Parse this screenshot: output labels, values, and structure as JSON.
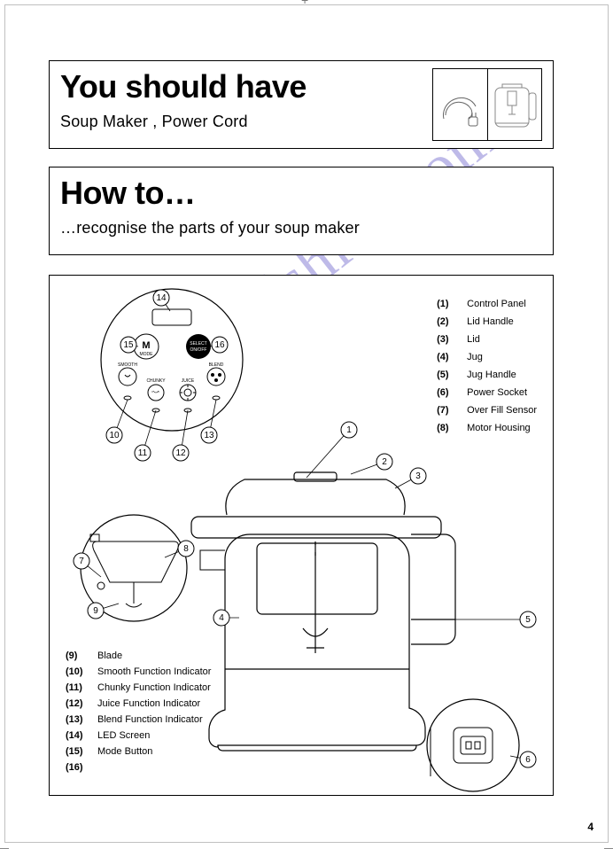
{
  "panel1": {
    "title": "You should have",
    "subtitle": "Soup Maker , Power Cord"
  },
  "panel2": {
    "title": "How to…",
    "subtitle": "…recognise the parts of your soup maker"
  },
  "parts_right": [
    {
      "n": "(1)",
      "t": "Control Panel"
    },
    {
      "n": "(2)",
      "t": "Lid Handle"
    },
    {
      "n": "(3)",
      "t": "Lid"
    },
    {
      "n": "(4)",
      "t": "Jug"
    },
    {
      "n": "(5)",
      "t": "Jug Handle"
    },
    {
      "n": "(6)",
      "t": "Power Socket"
    },
    {
      "n": "(7)",
      "t": "Over Fill Sensor"
    },
    {
      "n": "(8)",
      "t": "Motor Housing"
    }
  ],
  "parts_left": [
    {
      "n": "(9)",
      "t": "Blade"
    },
    {
      "n": "(10)",
      "t": "Smooth Function Indicator"
    },
    {
      "n": "(11)",
      "t": "Chunky Function Indicator"
    },
    {
      "n": "(12)",
      "t": "Juice Function Indicator"
    },
    {
      "n": "(13)",
      "t": "Blend Function Indicator"
    },
    {
      "n": "(14)",
      "t": "LED Screen"
    },
    {
      "n": "(15)",
      "t": "Mode Button"
    },
    {
      "n": "(16)",
      "t": ""
    }
  ],
  "diagram": {
    "lead_color": "#000",
    "bubble_labels": [
      "1",
      "2",
      "3",
      "4",
      "5",
      "6",
      "7",
      "8",
      "9",
      "10",
      "11",
      "12",
      "13",
      "14",
      "15",
      "16"
    ],
    "control_panel_labels": {
      "mode": "M",
      "mode_sub": "MODE",
      "select": "SELECT\nON/OFF",
      "smooth": "SMOOTH",
      "chunky": "CHUNKY",
      "juice": "JUICE",
      "blend": "BLEND"
    }
  },
  "watermark": "manualshive.com",
  "page_number": "4"
}
